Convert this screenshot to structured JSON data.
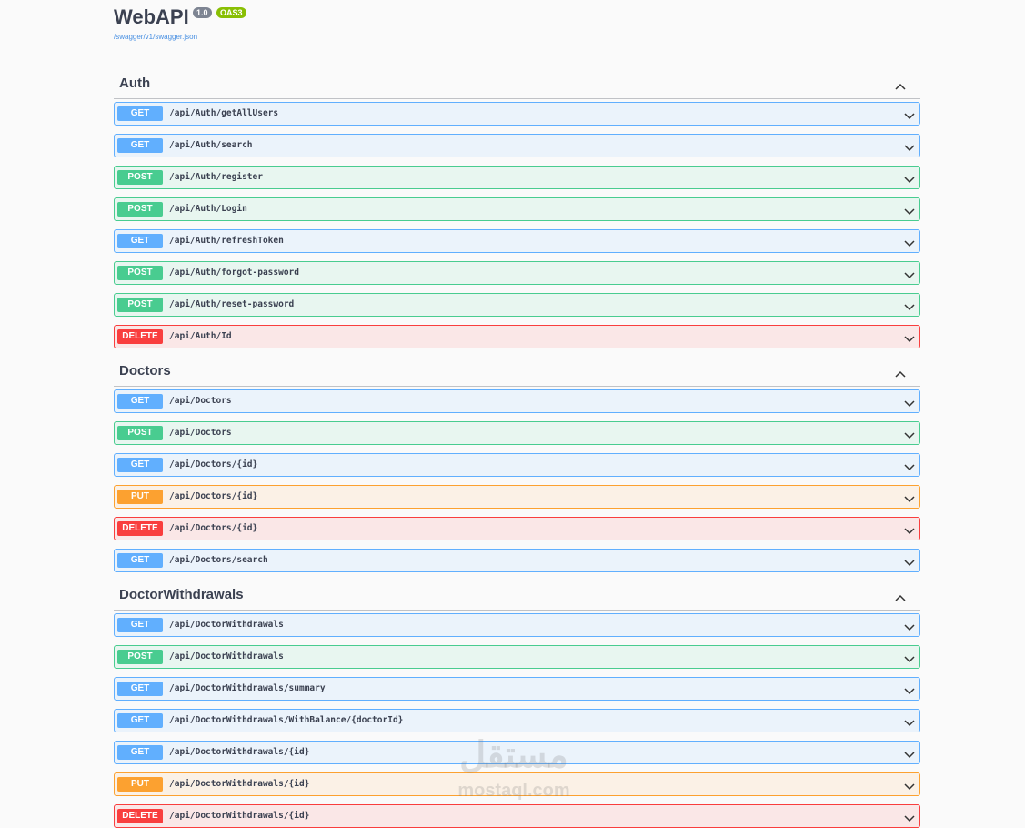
{
  "header": {
    "title": "WebAPI",
    "version": "1.0",
    "oas": "OAS3",
    "url": "/swagger/v1/swagger.json"
  },
  "sections": [
    {
      "name": "Auth",
      "operations": [
        {
          "method": "GET",
          "path": "/api/Auth/getAllUsers"
        },
        {
          "method": "GET",
          "path": "/api/Auth/search"
        },
        {
          "method": "POST",
          "path": "/api/Auth/register"
        },
        {
          "method": "POST",
          "path": "/api/Auth/Login"
        },
        {
          "method": "GET",
          "path": "/api/Auth/refreshToken"
        },
        {
          "method": "POST",
          "path": "/api/Auth/forgot-password"
        },
        {
          "method": "POST",
          "path": "/api/Auth/reset-password"
        },
        {
          "method": "DELETE",
          "path": "/api/Auth/Id"
        }
      ]
    },
    {
      "name": "Doctors",
      "operations": [
        {
          "method": "GET",
          "path": "/api/Doctors"
        },
        {
          "method": "POST",
          "path": "/api/Doctors"
        },
        {
          "method": "GET",
          "path": "/api/Doctors/{id}"
        },
        {
          "method": "PUT",
          "path": "/api/Doctors/{id}"
        },
        {
          "method": "DELETE",
          "path": "/api/Doctors/{id}"
        },
        {
          "method": "GET",
          "path": "/api/Doctors/search"
        }
      ]
    },
    {
      "name": "DoctorWithdrawals",
      "operations": [
        {
          "method": "GET",
          "path": "/api/DoctorWithdrawals"
        },
        {
          "method": "POST",
          "path": "/api/DoctorWithdrawals"
        },
        {
          "method": "GET",
          "path": "/api/DoctorWithdrawals/summary"
        },
        {
          "method": "GET",
          "path": "/api/DoctorWithdrawals/WithBalance/{doctorId}"
        },
        {
          "method": "GET",
          "path": "/api/DoctorWithdrawals/{id}"
        },
        {
          "method": "PUT",
          "path": "/api/DoctorWithdrawals/{id}"
        },
        {
          "method": "DELETE",
          "path": "/api/DoctorWithdrawals/{id}"
        }
      ]
    }
  ],
  "watermark": {
    "logo": "مستقل",
    "site": "mostaql.com"
  }
}
